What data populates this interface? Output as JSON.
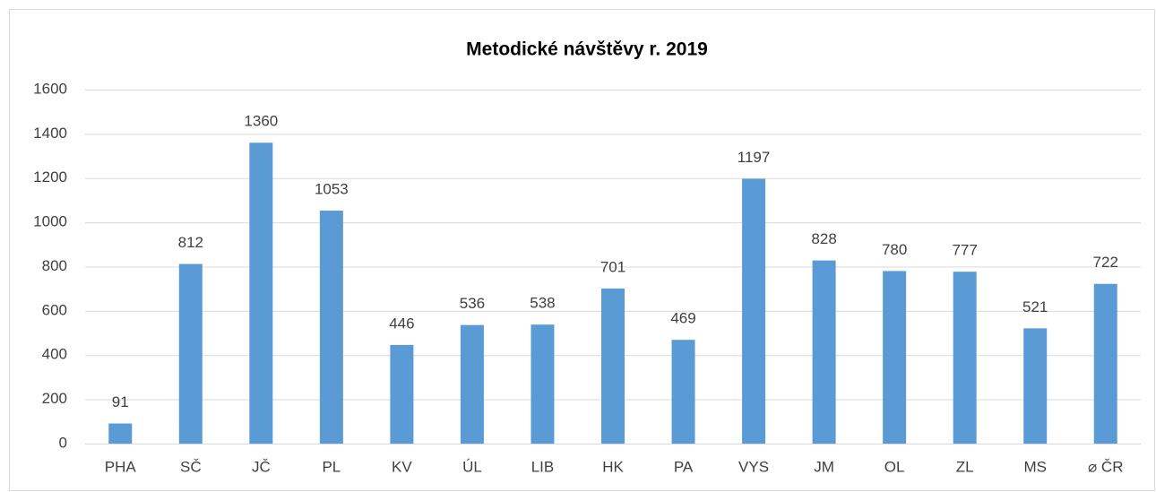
{
  "chart_data": {
    "type": "bar",
    "title": "Metodické návštěvy r. 2019",
    "categories": [
      "PHA",
      "SČ",
      "JČ",
      "PL",
      "KV",
      "ÚL",
      "LIB",
      "HK",
      "PA",
      "VYS",
      "JM",
      "OL",
      "ZL",
      "MS",
      "⌀ ČR"
    ],
    "values": [
      91,
      812,
      1360,
      1053,
      446,
      536,
      538,
      701,
      469,
      1197,
      828,
      780,
      777,
      521,
      722
    ],
    "color": "#5b9bd5",
    "ylim": [
      0,
      1600
    ],
    "yticks": [
      0,
      200,
      400,
      600,
      800,
      1000,
      1200,
      1400,
      1600
    ],
    "grid": true
  }
}
